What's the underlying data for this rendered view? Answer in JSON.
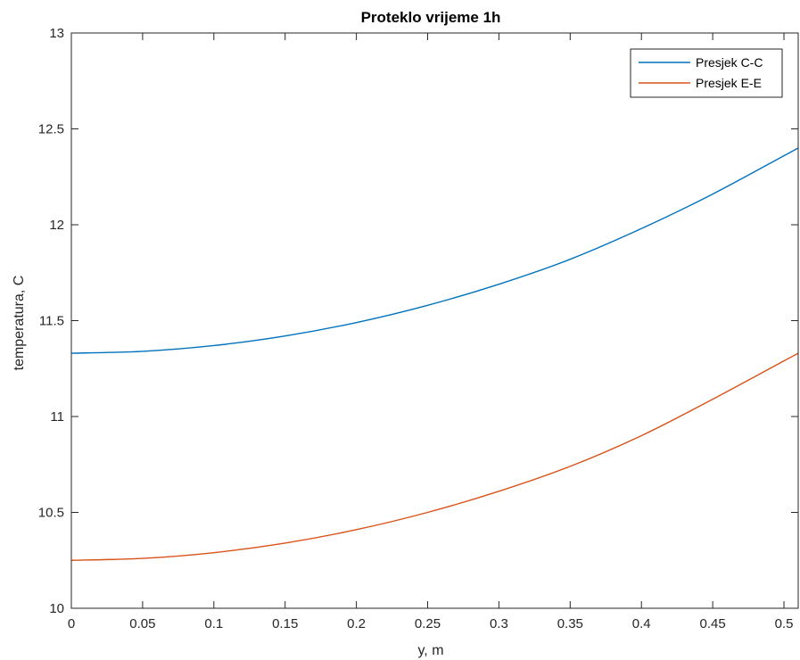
{
  "chart_data": {
    "type": "line",
    "title": "Proteklo vrijeme 1h",
    "xlabel": "y, m",
    "ylabel": "temperatura, C",
    "xlim": [
      0,
      0.51
    ],
    "ylim": [
      10,
      13
    ],
    "xticks": [
      0,
      0.05,
      0.1,
      0.15,
      0.2,
      0.25,
      0.3,
      0.35,
      0.4,
      0.45,
      0.5
    ],
    "xtick_labels": [
      "0",
      "0.05",
      "0.1",
      "0.15",
      "0.2",
      "0.25",
      "0.3",
      "0.35",
      "0.4",
      "0.45",
      "0.5"
    ],
    "yticks": [
      10,
      10.5,
      11,
      11.5,
      12,
      12.5,
      13
    ],
    "ytick_labels": [
      "10",
      "10.5",
      "11",
      "11.5",
      "12",
      "12.5",
      "13"
    ],
    "grid": false,
    "legend_position": "top-right",
    "x": [
      0,
      0.05,
      0.1,
      0.15,
      0.2,
      0.25,
      0.3,
      0.35,
      0.4,
      0.45,
      0.5,
      0.51
    ],
    "series": [
      {
        "name": "Presjek C-C",
        "color": "#0072BD",
        "values": [
          11.33,
          11.34,
          11.37,
          11.42,
          11.49,
          11.58,
          11.69,
          11.82,
          11.98,
          12.16,
          12.36,
          12.4
        ]
      },
      {
        "name": "Presjek E-E",
        "color": "#D95319",
        "values": [
          10.25,
          10.26,
          10.29,
          10.34,
          10.41,
          10.5,
          10.61,
          10.74,
          10.9,
          11.09,
          11.29,
          11.33
        ]
      }
    ]
  }
}
